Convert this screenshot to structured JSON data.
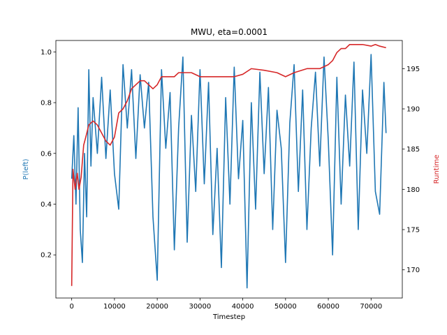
{
  "chart_data": {
    "type": "line",
    "title": "MWU, eta=0.0001",
    "xlabel": "Timestep",
    "ylabel_left": "P(left)",
    "ylabel_right": "Runtime",
    "xlim": [
      -3700,
      77300
    ],
    "ylim_left": [
      0.03,
      1.045
    ],
    "ylim_right": [
      166.5,
      198.5
    ],
    "x_ticks": [
      0,
      10000,
      20000,
      30000,
      40000,
      50000,
      60000,
      70000
    ],
    "x_tick_labels": [
      "0",
      "10000",
      "20000",
      "30000",
      "40000",
      "50000",
      "60000",
      "70000"
    ],
    "y_left_ticks": [
      0.2,
      0.4,
      0.6,
      0.8,
      1.0
    ],
    "y_left_tick_labels": [
      "0.2",
      "0.4",
      "0.6",
      "0.8",
      "1.0"
    ],
    "y_right_ticks": [
      170,
      175,
      180,
      185,
      190,
      195
    ],
    "y_right_tick_labels": [
      "170",
      "175",
      "180",
      "185",
      "190",
      "195"
    ],
    "grid": false,
    "colors": {
      "left": "#1f77b4",
      "right": "#d62728"
    },
    "series": [
      {
        "axis": "left",
        "color": "#1f77b4",
        "x": [
          0,
          500,
          1000,
          1500,
          2000,
          2500,
          3000,
          3500,
          4000,
          4500,
          5000,
          6000,
          7000,
          8000,
          9000,
          10000,
          11000,
          12000,
          13000,
          14000,
          15000,
          16000,
          17000,
          18000,
          19000,
          20000,
          21000,
          22000,
          23000,
          24000,
          25000,
          26000,
          27000,
          28000,
          29000,
          30000,
          31000,
          32000,
          33000,
          34000,
          35000,
          36000,
          37000,
          38000,
          39000,
          40000,
          41000,
          42000,
          43000,
          44000,
          45000,
          46000,
          47000,
          48000,
          49000,
          50000,
          51000,
          52000,
          53000,
          54000,
          55000,
          56000,
          57000,
          58000,
          59000,
          60000,
          61000,
          62000,
          63000,
          64000,
          65000,
          66000,
          67000,
          68000,
          69000,
          70000,
          71000,
          72000,
          73000,
          73500
        ],
        "y": [
          0.5,
          0.67,
          0.4,
          0.78,
          0.3,
          0.17,
          0.6,
          0.35,
          0.93,
          0.55,
          0.82,
          0.6,
          0.9,
          0.58,
          0.85,
          0.52,
          0.38,
          0.95,
          0.7,
          0.93,
          0.58,
          0.91,
          0.7,
          0.88,
          0.35,
          0.1,
          0.93,
          0.62,
          0.84,
          0.22,
          0.7,
          0.98,
          0.25,
          0.75,
          0.45,
          0.93,
          0.48,
          0.88,
          0.28,
          0.62,
          0.15,
          0.82,
          0.4,
          0.94,
          0.5,
          0.73,
          0.07,
          0.8,
          0.38,
          0.92,
          0.52,
          0.86,
          0.3,
          0.77,
          0.62,
          0.17,
          0.72,
          0.95,
          0.45,
          0.85,
          0.3,
          0.7,
          0.92,
          0.55,
          0.98,
          0.65,
          0.2,
          0.9,
          0.4,
          0.83,
          0.55,
          0.96,
          0.3,
          0.85,
          0.6,
          0.99,
          0.45,
          0.36,
          0.88,
          0.68
        ]
      },
      {
        "axis": "right",
        "color": "#d62728",
        "x": [
          0,
          300,
          800,
          1300,
          1700,
          2200,
          2800,
          3300,
          4000,
          5000,
          6000,
          7000,
          8000,
          9000,
          10000,
          11000,
          12000,
          13000,
          14000,
          15000,
          16000,
          17000,
          18000,
          19000,
          20000,
          21000,
          22000,
          23000,
          24000,
          25000,
          28000,
          30000,
          32000,
          35000,
          38000,
          40000,
          42000,
          45000,
          48000,
          50000,
          52000,
          55000,
          58000,
          60000,
          61000,
          62000,
          63000,
          64000,
          65000,
          66000,
          68000,
          70000,
          71000,
          72000,
          73500
        ],
        "y": [
          168.0,
          182.5,
          180.0,
          182.0,
          180.0,
          181.5,
          185.5,
          186.5,
          188.0,
          188.5,
          188.0,
          187.0,
          186.0,
          185.5,
          186.5,
          189.5,
          190.0,
          191.0,
          192.5,
          193.0,
          193.5,
          193.5,
          193.0,
          192.5,
          193.0,
          194.0,
          194.0,
          194.0,
          194.0,
          194.5,
          194.5,
          194.0,
          194.0,
          194.0,
          194.0,
          194.3,
          195.0,
          194.8,
          194.5,
          194.0,
          194.5,
          195.0,
          195.0,
          195.5,
          196.0,
          197.0,
          197.5,
          197.5,
          198.0,
          198.0,
          198.0,
          197.8,
          198.0,
          197.8,
          197.6
        ]
      }
    ]
  }
}
